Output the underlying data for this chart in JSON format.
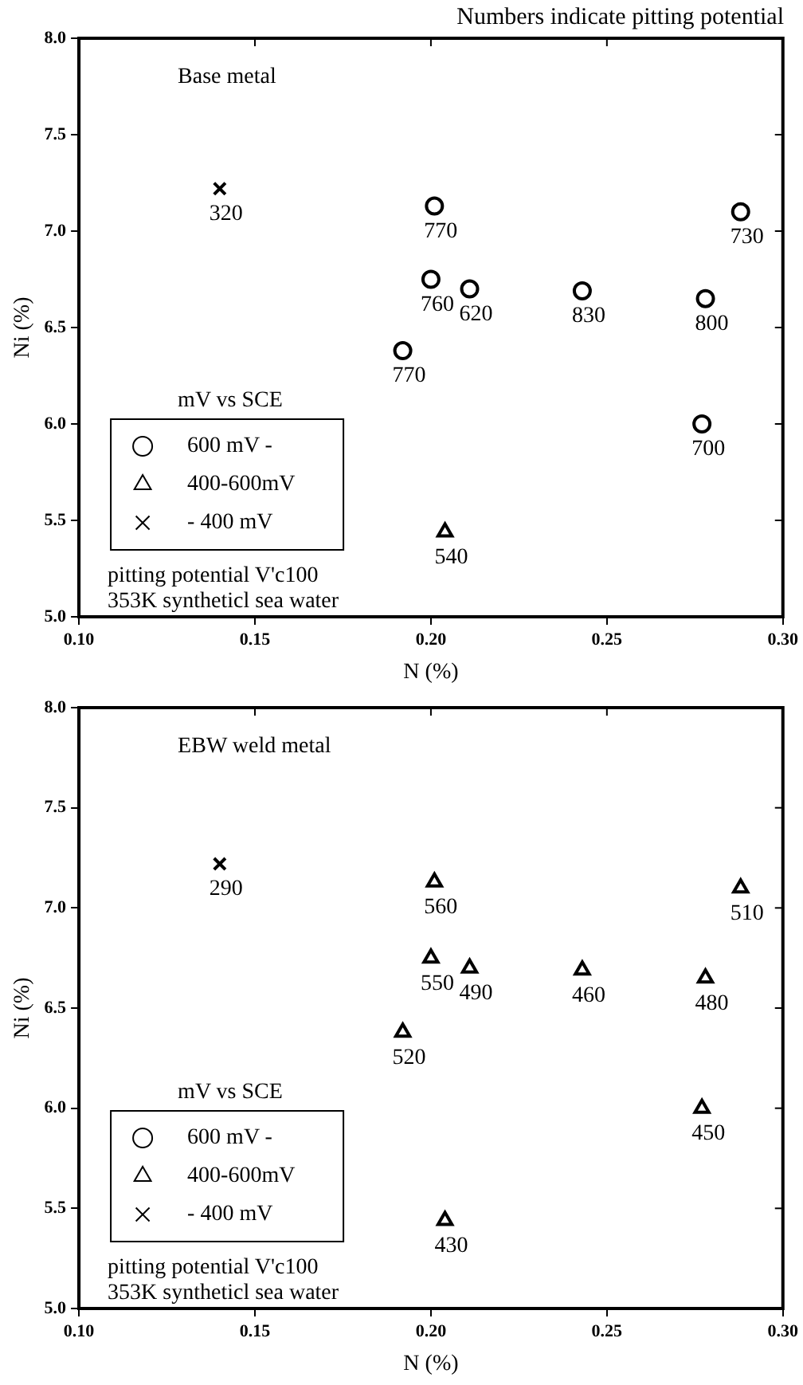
{
  "chart_data": [
    {
      "type": "scatter",
      "title": "Numbers indicate pitting potential",
      "subtitle": "Base metal",
      "xlabel": "N (%)",
      "ylabel": "Ni (%)",
      "legend_title": "mV vs SCE",
      "legend": "bottom left",
      "grid": false,
      "xlim": [
        0.1,
        0.3
      ],
      "ylim": [
        5,
        8
      ],
      "xticks": [
        {
          "value": 0.1,
          "label": "0.10"
        },
        {
          "value": 0.15,
          "label": "0.15"
        },
        {
          "value": 0.2,
          "label": "0.20"
        },
        {
          "value": 0.25,
          "label": "0.25"
        },
        {
          "value": 0.3,
          "label": "0.30"
        }
      ],
      "yticks": [
        {
          "value": 5,
          "label": "5.0"
        },
        {
          "value": 5.5,
          "label": "5.5"
        },
        {
          "value": 6,
          "label": "6.0"
        },
        {
          "value": 6.5,
          "label": "6.5"
        },
        {
          "value": 7,
          "label": "7.0"
        },
        {
          "value": 7.5,
          "label": "7.5"
        },
        {
          "value": 8,
          "label": "8.0"
        }
      ],
      "series": [
        {
          "name": "600 mV -",
          "color": "#000000",
          "marker": "circle",
          "x": [
            0.201,
            0.2,
            0.211,
            0.243,
            0.278,
            0.288,
            0.192,
            0.277
          ],
          "values": [
            7.13,
            6.75,
            6.7,
            6.69,
            6.65,
            7.1,
            6.38,
            6.0
          ]
        },
        {
          "name": "400-600mV",
          "color": "#000000",
          "marker": "triangle",
          "x": [
            0.204
          ],
          "values": [
            5.44
          ]
        },
        {
          "name": "- 400 mV",
          "color": "#000000",
          "marker": "cross",
          "x": [
            0.14
          ],
          "values": [
            7.22
          ]
        }
      ],
      "annotations": [
        {
          "text": "320",
          "x": 0.14,
          "y": 7.22
        },
        {
          "text": "770",
          "x": 0.201,
          "y": 7.13
        },
        {
          "text": "760",
          "x": 0.2,
          "y": 6.75
        },
        {
          "text": "620",
          "x": 0.211,
          "y": 6.7
        },
        {
          "text": "830",
          "x": 0.243,
          "y": 6.69
        },
        {
          "text": "800",
          "x": 0.278,
          "y": 6.65
        },
        {
          "text": "730",
          "x": 0.288,
          "y": 7.1
        },
        {
          "text": "770",
          "x": 0.192,
          "y": 6.38
        },
        {
          "text": "700",
          "x": 0.277,
          "y": 6.0
        },
        {
          "text": "540",
          "x": 0.204,
          "y": 5.44
        },
        "pitting potential V'c100",
        "353K syntheticl sea water"
      ]
    },
    {
      "type": "scatter",
      "subtitle": "EBW weld metal",
      "xlabel": "N (%)",
      "ylabel": "Ni (%)",
      "legend_title": "mV vs SCE",
      "legend": "bottom left",
      "grid": false,
      "xlim": [
        0.1,
        0.3
      ],
      "ylim": [
        5,
        8
      ],
      "xticks": [
        {
          "value": 0.1,
          "label": "0.10"
        },
        {
          "value": 0.15,
          "label": "0.15"
        },
        {
          "value": 0.2,
          "label": "0.20"
        },
        {
          "value": 0.25,
          "label": "0.25"
        },
        {
          "value": 0.3,
          "label": "0.30"
        }
      ],
      "yticks": [
        {
          "value": 5,
          "label": "5.0"
        },
        {
          "value": 5.5,
          "label": "5.5"
        },
        {
          "value": 6,
          "label": "6.0"
        },
        {
          "value": 6.5,
          "label": "6.5"
        },
        {
          "value": 7,
          "label": "7.0"
        },
        {
          "value": 7.5,
          "label": "7.5"
        },
        {
          "value": 8,
          "label": "8.0"
        }
      ],
      "series": [
        {
          "name": "600 mV -",
          "color": "#000000",
          "marker": "circle"
        },
        {
          "name": "400-600mV",
          "color": "#000000",
          "marker": "triangle",
          "x": [
            0.201,
            0.2,
            0.211,
            0.243,
            0.278,
            0.288,
            0.192,
            0.277,
            0.204
          ],
          "values": [
            7.13,
            6.75,
            6.7,
            6.69,
            6.65,
            7.1,
            6.38,
            6.0,
            5.44
          ]
        },
        {
          "name": "- 400 mV",
          "color": "#000000",
          "marker": "cross",
          "x": [
            0.14
          ],
          "values": [
            7.22
          ]
        }
      ],
      "annotations": [
        {
          "text": "290",
          "x": 0.14,
          "y": 7.22
        },
        {
          "text": "560",
          "x": 0.201,
          "y": 7.13
        },
        {
          "text": "550",
          "x": 0.2,
          "y": 6.75
        },
        {
          "text": "490",
          "x": 0.211,
          "y": 6.7
        },
        {
          "text": "460",
          "x": 0.243,
          "y": 6.69
        },
        {
          "text": "480",
          "x": 0.278,
          "y": 6.65
        },
        {
          "text": "510",
          "x": 0.288,
          "y": 7.1
        },
        {
          "text": "520",
          "x": 0.192,
          "y": 6.38
        },
        {
          "text": "450",
          "x": 0.277,
          "y": 6.0
        },
        {
          "text": "430",
          "x": 0.204,
          "y": 5.44
        },
        "pitting potential V'c100",
        "353K syntheticl sea water"
      ]
    }
  ]
}
